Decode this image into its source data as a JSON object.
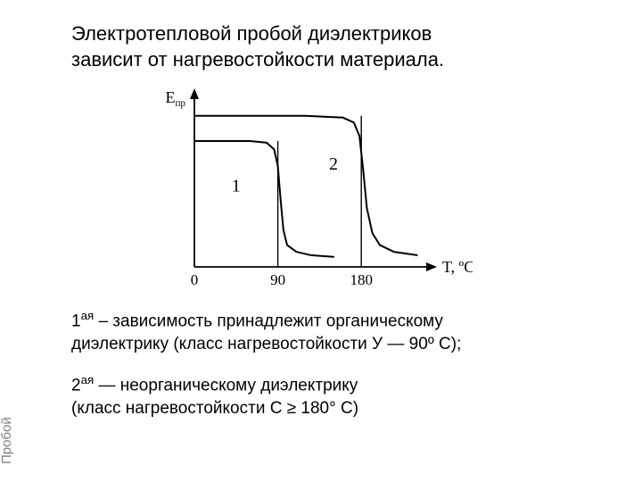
{
  "title_line1": "Электротепловой пробой диэлектриков",
  "title_line2": "зависит от нагревостойкости материала.",
  "side_label": "Пробой",
  "chart": {
    "type": "line",
    "y_axis_label": "Eпр",
    "y_axis_sub": "пр",
    "y_axis_main": "E",
    "x_axis_label": "T, ºC",
    "x_ticks": [
      "0",
      "90",
      "180"
    ],
    "series": [
      {
        "name": "1",
        "label": "1",
        "points": [
          [
            0,
            75
          ],
          [
            60,
            75
          ],
          [
            78,
            74
          ],
          [
            86,
            70
          ],
          [
            90,
            60
          ],
          [
            93,
            40
          ],
          [
            96,
            22
          ],
          [
            100,
            13
          ],
          [
            110,
            9
          ],
          [
            125,
            7
          ],
          [
            150,
            6
          ]
        ],
        "color": "#000000",
        "line_width": 2
      },
      {
        "name": "2",
        "label": "2",
        "points": [
          [
            0,
            90
          ],
          [
            120,
            90
          ],
          [
            160,
            89
          ],
          [
            172,
            86
          ],
          [
            178,
            78
          ],
          [
            182,
            58
          ],
          [
            186,
            35
          ],
          [
            192,
            20
          ],
          [
            200,
            13
          ],
          [
            215,
            9
          ],
          [
            240,
            7
          ]
        ],
        "color": "#000000",
        "line_width": 2
      }
    ],
    "xlim": [
      0,
      250
    ],
    "ylim": [
      0,
      100
    ],
    "axis_color": "#000000",
    "axis_width": 1.8,
    "tick_lines": [
      90,
      180
    ],
    "plot_bg": "#ffffff",
    "label_fontsize": 18,
    "tick_fontsize": 17,
    "series_label_fontsize": 20
  },
  "caption1_ord": "1",
  "caption1_sup": "ая",
  "caption1_text_a": " – зависимость принадлежит органическому",
  "caption1_text_b": " диэлектрику (класс нагревостойкости У — 90º С);",
  "caption2_ord": "2",
  "caption2_sup": "ая",
  "caption2_text_a": " — неорганическому диэлектрику",
  "caption2_text_b": "(класс нагревостойкости С ≥ 180° С)"
}
